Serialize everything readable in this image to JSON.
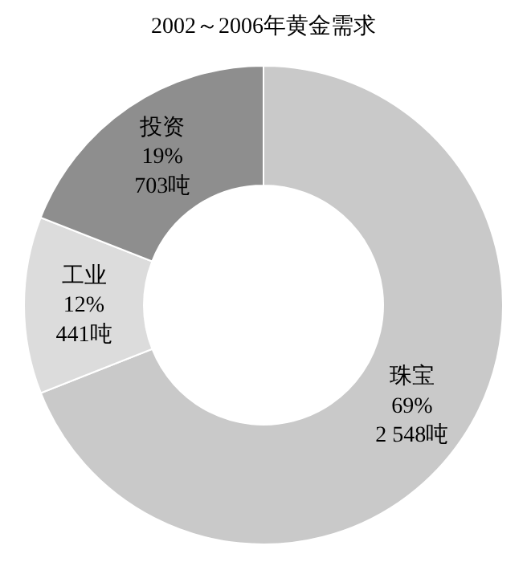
{
  "chart_data": {
    "type": "donut",
    "title": "2002～2006年黄金需求",
    "categories": [
      "珠宝",
      "工业",
      "投资"
    ],
    "values": [
      2548,
      441,
      703
    ],
    "value_labels": [
      "69%\n2 548吨",
      "12%\n441吨",
      "19%\n703吨"
    ],
    "colors": [
      "#c9c9c9",
      "#dcdcdc",
      "#8e8e8e"
    ],
    "legend": false
  }
}
